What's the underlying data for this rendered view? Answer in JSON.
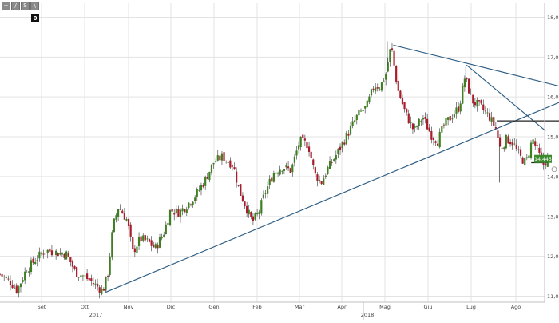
{
  "toolbar": {
    "buttons": [
      {
        "glyph": "+",
        "icon": "crosshair-icon"
      },
      {
        "glyph": "/",
        "icon": "trendline-icon"
      },
      {
        "glyph": "S",
        "icon": "settings-icon"
      },
      {
        "glyph": "\\",
        "icon": "draw-line-icon"
      }
    ],
    "counter": "0"
  },
  "colors": {
    "up": "#3f7f22",
    "down": "#a81c2b",
    "wick": "#333333",
    "trendline": "#2f5f86",
    "grid": "#e3e3e3",
    "price_badge": "#3d8a2e",
    "axis_text": "#444444"
  },
  "chart_data": {
    "type": "candlestick",
    "title": "",
    "xlabel": "",
    "ylabel": "",
    "ylim": [
      10.85,
      18.35
    ],
    "grid": true,
    "y_ticks": [
      "11,00",
      "12,00",
      "13,00",
      "14,00",
      "15,00",
      "16,00",
      "17,00",
      "18,00"
    ],
    "y_tick_values": [
      11,
      12,
      13,
      14,
      15,
      16,
      17,
      18
    ],
    "month_labels": [
      "Set",
      "Ott",
      "Nov",
      "Dic",
      "Gen",
      "Feb",
      "Mar",
      "Apr",
      "Mag",
      "Giu",
      "Lug",
      "Ago"
    ],
    "year_labels": [
      "2017",
      "2018"
    ],
    "last_price": "14,445",
    "last_price_value": 14.445,
    "anchors": [
      {
        "m": 0,
        "p": 11.55
      },
      {
        "m": 0.25,
        "p": 11.35
      },
      {
        "m": 0.4,
        "p": 11.15
      },
      {
        "m": 0.6,
        "p": 11.65
      },
      {
        "m": 0.85,
        "p": 11.95
      },
      {
        "m": 1.05,
        "p": 12.15
      },
      {
        "m": 1.3,
        "p": 12.1
      },
      {
        "m": 1.55,
        "p": 12.05
      },
      {
        "m": 1.75,
        "p": 11.6
      },
      {
        "m": 1.95,
        "p": 11.5
      },
      {
        "m": 2.25,
        "p": 11.25
      },
      {
        "m": 2.38,
        "p": 11.12
      },
      {
        "m": 2.5,
        "p": 11.55
      },
      {
        "m": 2.62,
        "p": 12.75
      },
      {
        "m": 2.75,
        "p": 13.25
      },
      {
        "m": 2.95,
        "p": 12.9
      },
      {
        "m": 3.08,
        "p": 12.1
      },
      {
        "m": 3.25,
        "p": 12.45
      },
      {
        "m": 3.45,
        "p": 12.35
      },
      {
        "m": 3.6,
        "p": 12.2
      },
      {
        "m": 3.8,
        "p": 12.6
      },
      {
        "m": 3.95,
        "p": 13.15
      },
      {
        "m": 4.15,
        "p": 13.1
      },
      {
        "m": 4.35,
        "p": 13.3
      },
      {
        "m": 4.55,
        "p": 13.55
      },
      {
        "m": 4.75,
        "p": 13.9
      },
      {
        "m": 4.95,
        "p": 14.35
      },
      {
        "m": 5.15,
        "p": 14.5
      },
      {
        "m": 5.4,
        "p": 14.3
      },
      {
        "m": 5.55,
        "p": 13.65
      },
      {
        "m": 5.7,
        "p": 13.25
      },
      {
        "m": 5.85,
        "p": 12.85
      },
      {
        "m": 6.0,
        "p": 13.1
      },
      {
        "m": 6.15,
        "p": 13.6
      },
      {
        "m": 6.35,
        "p": 14.1
      },
      {
        "m": 6.55,
        "p": 14.25
      },
      {
        "m": 6.75,
        "p": 14.15
      },
      {
        "m": 6.95,
        "p": 14.9
      },
      {
        "m": 7.15,
        "p": 14.8
      },
      {
        "m": 7.3,
        "p": 14.05
      },
      {
        "m": 7.45,
        "p": 13.85
      },
      {
        "m": 7.6,
        "p": 14.2
      },
      {
        "m": 7.8,
        "p": 14.55
      },
      {
        "m": 8.05,
        "p": 15.05
      },
      {
        "m": 8.3,
        "p": 15.55
      },
      {
        "m": 8.5,
        "p": 15.75
      },
      {
        "m": 8.68,
        "p": 16.3
      },
      {
        "m": 8.82,
        "p": 16.25
      },
      {
        "m": 8.95,
        "p": 16.6
      },
      {
        "m": 9.07,
        "p": 17.3
      },
      {
        "m": 9.22,
        "p": 16.2
      },
      {
        "m": 9.4,
        "p": 15.6
      },
      {
        "m": 9.6,
        "p": 15.15
      },
      {
        "m": 9.8,
        "p": 15.5
      },
      {
        "m": 10.0,
        "p": 15.05
      },
      {
        "m": 10.15,
        "p": 14.9
      },
      {
        "m": 10.3,
        "p": 15.3
      },
      {
        "m": 10.5,
        "p": 15.55
      },
      {
        "m": 10.65,
        "p": 15.75
      },
      {
        "m": 10.78,
        "p": 16.5
      },
      {
        "m": 10.95,
        "p": 15.9
      },
      {
        "m": 11.15,
        "p": 15.75
      },
      {
        "m": 11.35,
        "p": 15.5
      },
      {
        "m": 11.5,
        "p": 15.2
      },
      {
        "m": 11.6,
        "p": 14.7
      },
      {
        "m": 11.75,
        "p": 14.95
      },
      {
        "m": 11.9,
        "p": 14.85
      },
      {
        "m": 12.05,
        "p": 14.5
      },
      {
        "m": 12.2,
        "p": 14.35
      },
      {
        "m": 12.35,
        "p": 14.95
      },
      {
        "m": 12.5,
        "p": 14.55
      },
      {
        "m": 12.6,
        "p": 14.3
      },
      {
        "m": 12.7,
        "p": 14.445
      }
    ],
    "spikes": [
      {
        "m": 11.58,
        "low": 13.85
      },
      {
        "m": 8.98,
        "high": 17.4
      },
      {
        "m": 10.8,
        "high": 16.75
      }
    ],
    "trendlines": [
      {
        "from": {
          "m": 2.45,
          "p": 11.1
        },
        "to": {
          "m": 13.05,
          "p": 15.9
        }
      },
      {
        "from": {
          "m": 9.12,
          "p": 17.3
        },
        "to": {
          "m": 13.05,
          "p": 16.25
        }
      },
      {
        "from": {
          "m": 10.82,
          "p": 16.8
        },
        "to": {
          "m": 12.65,
          "p": 15.15
        }
      },
      {
        "from": {
          "m": 11.52,
          "p": 15.4
        },
        "to": {
          "m": 13.0,
          "p": 15.4
        }
      },
      {
        "from": {
          "m": 12.32,
          "p": 14.35
        },
        "to": {
          "m": 12.7,
          "p": 14.35
        }
      }
    ]
  }
}
